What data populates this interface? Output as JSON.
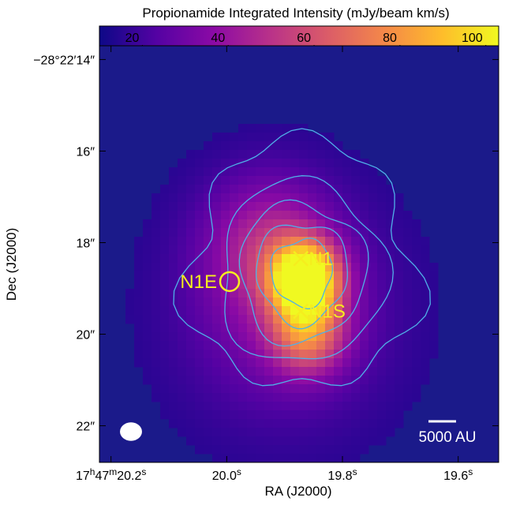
{
  "chart_data": {
    "type": "heatmap",
    "title": "Propionamide Integrated Intensity (mJy/beam km/s)",
    "xlabel": "RA (J2000)",
    "ylabel": "Dec (J2000)",
    "xlim_sec": [
      20.22,
      19.53
    ],
    "ylim_arcsec": [
      22.8,
      13.7
    ],
    "x_ticks": [
      {
        "value": 20.2,
        "label": "17h47m20.2s",
        "parts": {
          "deg": "17",
          "min": "47",
          "sec": "20.2"
        }
      },
      {
        "value": 20.0,
        "label": "20.0s"
      },
      {
        "value": 19.8,
        "label": "19.8s"
      },
      {
        "value": 19.6,
        "label": "19.6s"
      }
    ],
    "y_ticks": [
      {
        "value": 14,
        "label": "−28°22′14″",
        "parts": {
          "deg": "−28",
          "min": "22",
          "sec": "14"
        }
      },
      {
        "value": 16,
        "label": "16″"
      },
      {
        "value": 18,
        "label": "18″"
      },
      {
        "value": 20,
        "label": "20″"
      },
      {
        "value": 22,
        "label": "22″"
      }
    ],
    "colorbar": {
      "range": [
        10,
        103
      ],
      "ticks": [
        20,
        40,
        60,
        80,
        100
      ],
      "tick_labels": [
        "20",
        "40",
        "60",
        "80",
        "100"
      ],
      "colormap": "plasma"
    },
    "sources": [
      {
        "name": "N1",
        "marker": "x",
        "ra_sec": 19.872,
        "dec_arcsec": 18.35
      },
      {
        "name": "N1S",
        "marker": "x",
        "ra_sec": 19.872,
        "dec_arcsec": 19.5
      },
      {
        "name": "N1E",
        "marker": "circle",
        "ra_sec": 19.995,
        "dec_arcsec": 18.85
      }
    ],
    "emission_peaks": [
      {
        "ra_sec": 19.865,
        "dec_arcsec": 18.8,
        "amp": 95,
        "sigma": 0.55
      },
      {
        "ra_sec": 19.86,
        "dec_arcsec": 20.0,
        "amp": 45,
        "sigma": 0.6
      },
      {
        "ra_sec": 19.93,
        "dec_arcsec": 18.0,
        "amp": 25,
        "sigma": 1.0
      },
      {
        "ra_sec": 19.9,
        "dec_arcsec": 19.5,
        "amp": 20,
        "sigma": 1.6
      }
    ],
    "background_level": 14,
    "contour_center": {
      "ra_sec": 19.87,
      "dec_arcsec": 18.65
    },
    "contour_levels_radius_arcsec": [
      2.6,
      1.9,
      1.45,
      1.05,
      0.7
    ],
    "beam": {
      "major_arcsec": 0.75,
      "minor_arcsec": 0.65
    },
    "scale_bar": {
      "label": "5000 AU"
    },
    "colors": {
      "contour": "#4fb0e8",
      "marker": "#f5ee1e",
      "background": "#1b1a8a"
    }
  }
}
